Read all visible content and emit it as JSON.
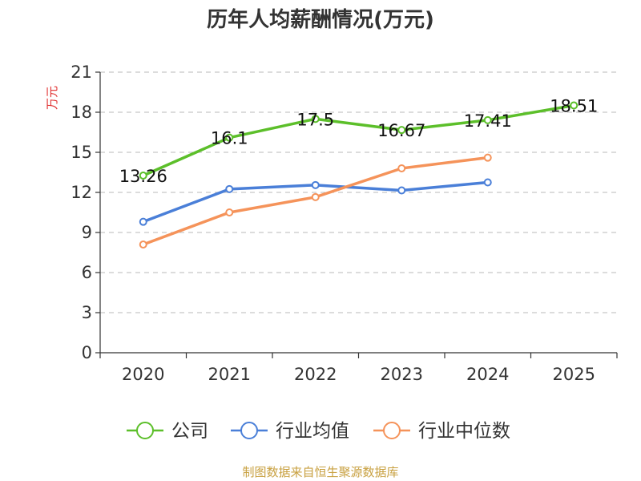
{
  "chart_data": {
    "type": "line",
    "title": "历年人均薪酬情况(万元)",
    "ylabel": "万元",
    "xlabel": "",
    "categories": [
      "2020",
      "2021",
      "2022",
      "2023",
      "2024",
      "2025"
    ],
    "ylim": [
      0,
      21
    ],
    "yticks": [
      0,
      3,
      6,
      9,
      12,
      15,
      18,
      21
    ],
    "grid": true,
    "legend_position": "bottom",
    "series": [
      {
        "name": "公司",
        "color": "#5cbf2a",
        "values": [
          13.26,
          16.1,
          17.5,
          16.67,
          17.41,
          18.51
        ],
        "labels": [
          "13.26",
          "16.1",
          "17.5",
          "16.67",
          "17.41",
          "18.51"
        ]
      },
      {
        "name": "行业均值",
        "color": "#4a7fd8",
        "values": [
          9.8,
          12.25,
          12.55,
          12.15,
          12.75,
          null
        ],
        "labels": null
      },
      {
        "name": "行业中位数",
        "color": "#f5935a",
        "values": [
          8.1,
          10.5,
          11.65,
          13.8,
          14.6,
          null
        ],
        "labels": null
      }
    ]
  },
  "footer": {
    "source": "制图数据来自恒生聚源数据库"
  }
}
